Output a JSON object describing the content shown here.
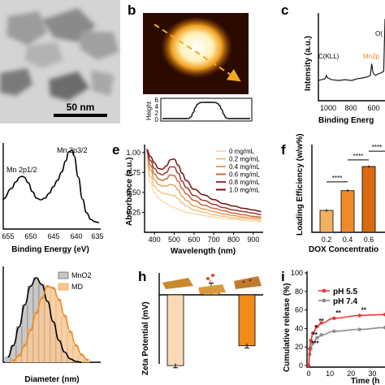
{
  "figure": {
    "panel_labels": [
      "b",
      "c",
      "e",
      "f",
      "h",
      "i"
    ],
    "colors": {
      "dark_red": "#7b1414",
      "orange": "#f28a1c",
      "peach": "#f7c99a",
      "grey": "#8c8c8c",
      "red": "#e53935"
    }
  },
  "panel_a": {
    "scalebar_label": "50 nm"
  },
  "panel_b": {
    "profile_ylabel": "Height",
    "profile_yticks": [
      "6",
      "4",
      "2",
      "0"
    ]
  },
  "panel_c": {
    "ylabel": "Intensity (a.u.)",
    "xlabel": "Binding Energ",
    "xticks": [
      "1000",
      "800",
      "600"
    ],
    "peak_labels": [
      "C(KLL)",
      "Mn2p",
      "O("
    ],
    "chart_data": {
      "type": "line",
      "title": "",
      "xlabel": "Binding Energ",
      "ylabel": "Intensity (a.u.)",
      "x_reversed": true,
      "xlim": [
        1050,
        550
      ],
      "x": [
        1050,
        1000,
        990,
        980,
        950,
        900,
        850,
        800,
        760,
        720,
        690,
        660,
        650,
        642,
        635,
        620,
        600,
        580,
        560,
        550
      ],
      "series": [
        {
          "values": [
            0.22,
            0.24,
            0.28,
            0.25,
            0.23,
            0.22,
            0.23,
            0.22,
            0.24,
            0.25,
            0.26,
            0.28,
            0.42,
            0.33,
            0.3,
            0.28,
            0.3,
            0.31,
            0.33,
            0.95
          ]
        }
      ]
    }
  },
  "panel_d": {
    "xlabel": "Binding Energy (eV)",
    "xticks": [
      "655",
      "650",
      "645",
      "640",
      "635"
    ],
    "peak_labels": [
      "Mn 2p1/2",
      "Mn 2p3/2"
    ],
    "chart_data": {
      "type": "line",
      "title": "",
      "xlabel": "Binding Energy (eV)",
      "ylabel": "",
      "x_reversed": true,
      "xlim": [
        658,
        635
      ],
      "x": [
        658,
        656,
        655,
        654,
        653.5,
        653,
        652,
        651,
        650,
        649,
        648,
        647,
        646,
        645,
        644,
        643,
        642.3,
        641.5,
        641,
        640,
        639,
        638,
        637,
        636,
        635
      ],
      "series": [
        {
          "values": [
            0.35,
            0.48,
            0.56,
            0.62,
            0.63,
            0.62,
            0.55,
            0.44,
            0.36,
            0.34,
            0.36,
            0.42,
            0.5,
            0.58,
            0.68,
            0.82,
            0.93,
            0.95,
            0.88,
            0.62,
            0.35,
            0.18,
            0.1,
            0.07,
            0.06
          ]
        }
      ]
    }
  },
  "panel_e": {
    "ylabel": "Absorbance (a.u.)",
    "xlabel": "Wavelength (nm)",
    "xticks": [
      "400",
      "500",
      "600",
      "700",
      "800",
      "900"
    ],
    "yticks": [
      "1.00",
      "0.75",
      "0.50",
      "0.25"
    ],
    "legend": [
      "0 mg/mL",
      "0.2 mg/mL",
      "0.4 mg/mL",
      "0.6 mg/mL",
      "0.8 mg/mL",
      "1.0 mg/mL"
    ],
    "series_colors": [
      "#f7dcae",
      "#f0c287",
      "#e2a060",
      "#c86a3c",
      "#a2332a",
      "#701212"
    ],
    "chart_data": {
      "type": "line",
      "title": "",
      "xlabel": "Wavelength (nm)",
      "ylabel": "Absorbance (a.u.)",
      "xlim": [
        350,
        950
      ],
      "ylim": [
        0,
        1.1
      ],
      "x": [
        360,
        380,
        400,
        420,
        440,
        460,
        480,
        500,
        520,
        540,
        560,
        600,
        650,
        700,
        750,
        800,
        850,
        900,
        940
      ],
      "series": [
        {
          "name": "0 mg/mL",
          "values": [
            0.88,
            0.62,
            0.5,
            0.43,
            0.39,
            0.36,
            0.33,
            0.31,
            0.29,
            0.27,
            0.25,
            0.23,
            0.21,
            0.19,
            0.17,
            0.16,
            0.15,
            0.14,
            0.13
          ]
        },
        {
          "name": "0.2 mg/mL",
          "values": [
            0.95,
            0.7,
            0.58,
            0.52,
            0.49,
            0.48,
            0.47,
            0.46,
            0.42,
            0.37,
            0.33,
            0.28,
            0.25,
            0.22,
            0.2,
            0.18,
            0.17,
            0.16,
            0.15
          ]
        },
        {
          "name": "0.4 mg/mL",
          "values": [
            1.0,
            0.78,
            0.66,
            0.6,
            0.58,
            0.58,
            0.6,
            0.59,
            0.53,
            0.45,
            0.4,
            0.33,
            0.29,
            0.26,
            0.23,
            0.21,
            0.19,
            0.18,
            0.17
          ]
        },
        {
          "name": "0.6 mg/mL",
          "values": [
            1.02,
            0.84,
            0.73,
            0.67,
            0.65,
            0.67,
            0.72,
            0.71,
            0.64,
            0.55,
            0.48,
            0.4,
            0.34,
            0.3,
            0.27,
            0.24,
            0.22,
            0.2,
            0.19
          ]
        },
        {
          "name": "0.8 mg/mL",
          "values": [
            1.03,
            0.9,
            0.8,
            0.74,
            0.72,
            0.75,
            0.82,
            0.82,
            0.74,
            0.64,
            0.56,
            0.46,
            0.4,
            0.35,
            0.31,
            0.28,
            0.26,
            0.24,
            0.22
          ]
        },
        {
          "name": "1.0 mg/mL",
          "values": [
            1.04,
            0.95,
            0.87,
            0.8,
            0.79,
            0.83,
            0.91,
            0.92,
            0.84,
            0.74,
            0.65,
            0.54,
            0.47,
            0.41,
            0.36,
            0.33,
            0.3,
            0.28,
            0.26
          ]
        }
      ]
    }
  },
  "panel_f": {
    "ylabel": "Loading Efficiency (w/w%)",
    "xlabel": "DOX Concentratio",
    "xticks": [
      "0.2",
      "0.4",
      "0.6"
    ],
    "sig_labels": [
      "****",
      "****",
      "****"
    ],
    "chart_data": {
      "type": "bar",
      "title": "",
      "xlabel": "DOX Concentratio",
      "ylabel": "Loading Efficiency (w/w%)",
      "ylim": [
        0,
        40
      ],
      "categories": [
        "0.2",
        "0.4",
        "0.6"
      ],
      "values": [
        10,
        19,
        30
      ],
      "errors": [
        0.6,
        0.6,
        0.5
      ]
    }
  },
  "panel_g": {
    "xlabel": "Diameter (nm)",
    "legend": [
      "MnO2",
      "MD"
    ],
    "chart_data": {
      "type": "bar",
      "title": "",
      "xlabel": "Diameter (nm)",
      "ylabel": "",
      "series": [
        {
          "name": "MnO2",
          "values": [
            0.06,
            0.2,
            0.42,
            0.68,
            0.9,
            1.0,
            0.92,
            0.72,
            0.48,
            0.26,
            0.12,
            0.04,
            0.01,
            0.0
          ]
        },
        {
          "name": "MD",
          "values": [
            0.02,
            0.08,
            0.2,
            0.38,
            0.58,
            0.76,
            0.9,
            0.88,
            0.74,
            0.55,
            0.36,
            0.2,
            0.09,
            0.03
          ]
        }
      ]
    }
  },
  "panel_h": {
    "ylabel": "Zeta Potential (mV)",
    "chart_data": {
      "type": "bar",
      "title": "",
      "ylabel": "Zeta Potential (mV)",
      "ylim": [
        -14,
        2
      ],
      "values": [
        -13.2,
        1.2,
        -9.5
      ],
      "errors": [
        0.4,
        1.0,
        0.4
      ]
    }
  },
  "panel_i": {
    "ylabel": "Cumulative release (%)",
    "xlabel": "Time (h",
    "yticks": [
      "0",
      "20",
      "40",
      "60",
      "80",
      "100"
    ],
    "xticks": [
      "0",
      "10",
      "20",
      "30"
    ],
    "legend": [
      "pH 5.5",
      "pH 7.4"
    ],
    "sig_labels": [
      "***",
      "**",
      "*",
      "**",
      "**",
      "**"
    ],
    "chart_data": {
      "type": "line",
      "title": "",
      "xlabel": "Time (h",
      "ylabel": "Cumulative release (%)",
      "ylim": [
        0,
        100
      ],
      "xlim": [
        0,
        36
      ],
      "x": [
        0,
        0.5,
        1,
        2,
        4,
        6,
        12,
        24,
        36
      ],
      "series": [
        {
          "name": "pH 5.5",
          "values": [
            0,
            18,
            27,
            35,
            42,
            46,
            51,
            54,
            55
          ]
        },
        {
          "name": "pH 7.4",
          "values": [
            0,
            12,
            18,
            24,
            30,
            33,
            37,
            39,
            41
          ]
        }
      ]
    }
  }
}
